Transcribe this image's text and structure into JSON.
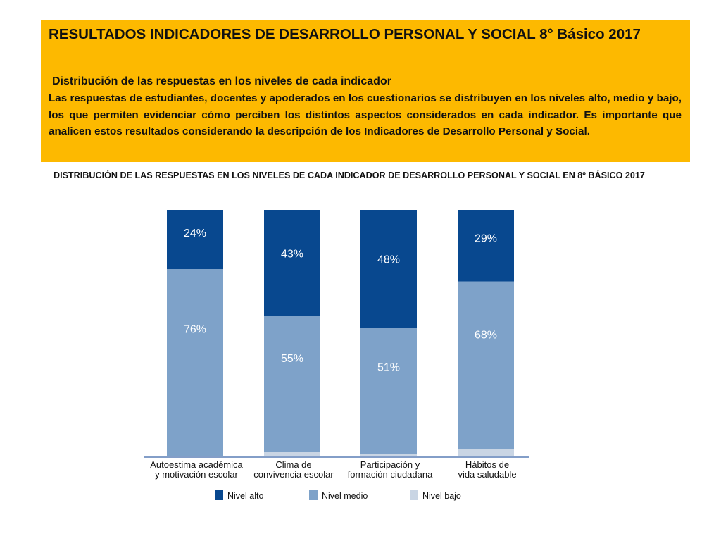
{
  "header": {
    "title": "RESULTADOS INDICADORES DE DESARROLLO PERSONAL Y SOCIAL 8° Básico 2017",
    "subtitle": "Distribución de las respuestas en los niveles de cada indicador",
    "paragraph": "Las respuestas de estudiantes, docentes y apoderados en los cuestionarios se distribuyen en los niveles alto, medio y bajo, los que permiten evidenciar cómo perciben los distintos aspectos considerados en cada indicador. Es importante que analicen estos resultados considerando la descripción de los Indicadores de Desarrollo Personal y Social."
  },
  "chart_heading": "DISTRIBUCIÓN DE LAS RESPUESTAS EN LOS NIVELES DE CADA INDICADOR DE DESARROLLO PERSONAL Y SOCIAL EN 8º BÁSICO 2017",
  "colors": {
    "header_background": "#fdb900",
    "nivel_alto": "#08488f",
    "nivel_medio": "#7ea2c9",
    "nivel_bajo": "#c9d5e4",
    "axis_line": "#5a7fb5"
  },
  "chart_data": {
    "type": "bar",
    "stacked": true,
    "categories": [
      [
        "Autoestima académica",
        "y motivación escolar"
      ],
      [
        "Clima de",
        "convivencia escolar"
      ],
      [
        "Participación y",
        "formación ciudadana"
      ],
      [
        "Hábitos de",
        "vida saludable"
      ]
    ],
    "series": [
      {
        "name": "Nivel bajo",
        "values": [
          0,
          2,
          1,
          3
        ],
        "labels": [
          "",
          "2%",
          "1%",
          "3%"
        ]
      },
      {
        "name": "Nivel medio",
        "values": [
          76,
          55,
          51,
          68
        ],
        "labels": [
          "76%",
          "55%",
          "51%",
          "68%"
        ]
      },
      {
        "name": "Nivel alto",
        "values": [
          24,
          43,
          48,
          29
        ],
        "labels": [
          "24%",
          "43%",
          "48%",
          "29%"
        ]
      }
    ],
    "legend_order": [
      "Nivel alto",
      "Nivel medio",
      "Nivel bajo"
    ],
    "ylim": [
      0,
      100
    ],
    "legend_position": "bottom",
    "grid": false
  }
}
